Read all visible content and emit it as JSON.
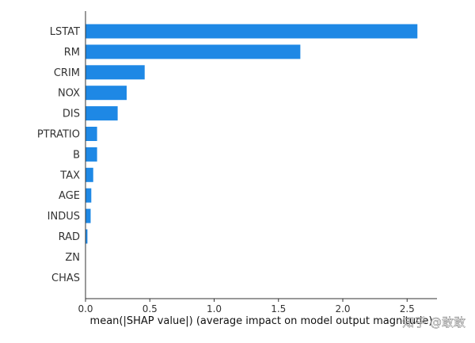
{
  "chart_data": {
    "type": "bar",
    "orientation": "horizontal",
    "categories": [
      "LSTAT",
      "RM",
      "CRIM",
      "NOX",
      "DIS",
      "PTRATIO",
      "B",
      "TAX",
      "AGE",
      "INDUS",
      "RAD",
      "ZN",
      "CHAS"
    ],
    "values": [
      2.58,
      1.67,
      0.46,
      0.32,
      0.25,
      0.09,
      0.09,
      0.06,
      0.045,
      0.04,
      0.015,
      0.0,
      0.0
    ],
    "xlim": [
      0,
      2.7
    ],
    "xticks": [
      0.0,
      0.5,
      1.0,
      1.5,
      2.0,
      2.5
    ],
    "xtick_labels": [
      "0.0",
      "0.5",
      "1.0",
      "1.5",
      "2.0",
      "2.5"
    ],
    "xlabel": "mean(|SHAP value|) (average impact on model output magnitude)",
    "ylabel": "",
    "title": "",
    "grid": false,
    "bar_color": "#1e88e5"
  },
  "watermark": {
    "text": "知乎 @敢敢"
  }
}
